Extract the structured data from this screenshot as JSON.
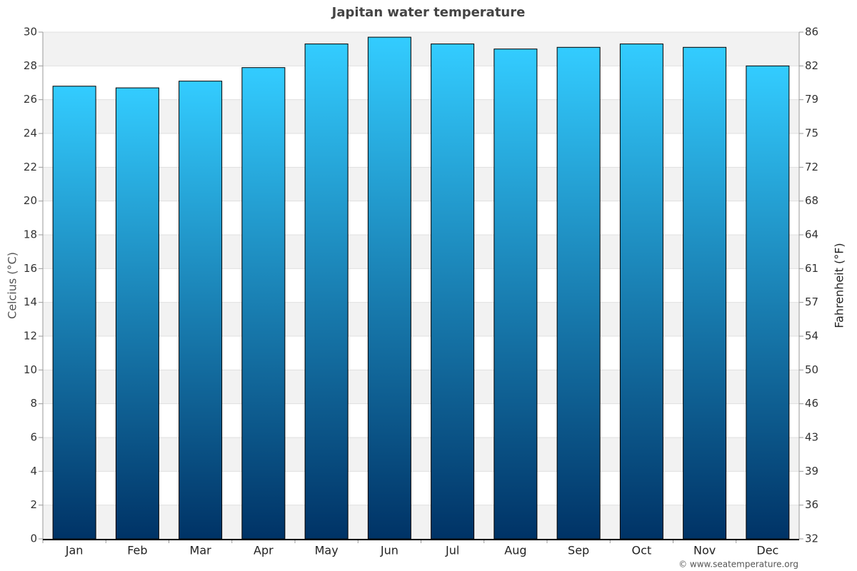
{
  "chart_data": {
    "type": "bar",
    "title": "Japitan water temperature",
    "y_label": "Celcius (°C)",
    "y2_label": "Fahrenheit (°F)",
    "footer": "© www.seatemperature.org",
    "categories": [
      "Jan",
      "Feb",
      "Mar",
      "Apr",
      "May",
      "Jun",
      "Jul",
      "Aug",
      "Sep",
      "Oct",
      "Nov",
      "Dec"
    ],
    "values": [
      26.8,
      26.7,
      27.1,
      27.9,
      29.3,
      29.7,
      29.3,
      29.0,
      29.1,
      29.3,
      29.1,
      28.0
    ],
    "gradient": [
      "#33ccff",
      "#003366"
    ],
    "ylim": [
      0,
      30
    ],
    "yticks": [
      0,
      2,
      4,
      6,
      8,
      10,
      12,
      14,
      16,
      18,
      20,
      22,
      24,
      26,
      28,
      30
    ],
    "y2lim": [
      32,
      86
    ],
    "y2ticks": [
      32,
      {
        "value": 35.6,
        "label": "36"
      },
      {
        "value": 39.2,
        "label": "39"
      },
      {
        "value": 42.8,
        "label": "43"
      },
      {
        "value": 46.4,
        "label": "46"
      },
      50,
      {
        "value": 53.6,
        "label": "54"
      },
      {
        "value": 57.2,
        "label": "57"
      },
      {
        "value": 60.8,
        "label": "61"
      },
      {
        "value": 64.4,
        "label": "64"
      },
      68,
      {
        "value": 71.6,
        "label": "72"
      },
      {
        "value": 75.2,
        "label": "75"
      },
      {
        "value": 78.8,
        "label": "79"
      },
      {
        "value": 82.4,
        "label": "82"
      },
      86
    ],
    "grid": true
  }
}
